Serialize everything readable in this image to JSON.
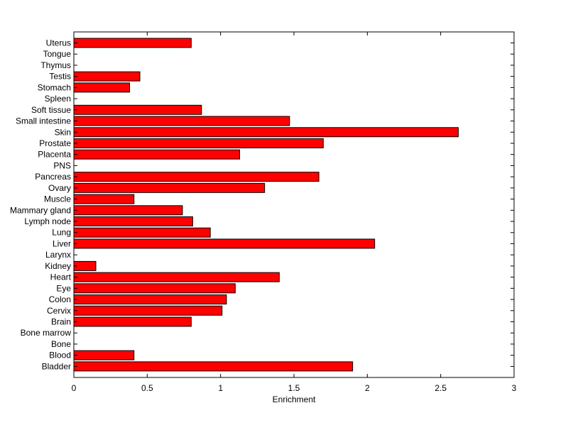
{
  "chart_data": {
    "type": "bar",
    "orientation": "horizontal",
    "xlabel": "Enrichment",
    "ylabel": "",
    "title": "",
    "xlim": [
      0,
      3
    ],
    "xticks": [
      "0",
      "0.5",
      "1",
      "1.5",
      "2",
      "2.5",
      "3"
    ],
    "bar_color": "#ff0000",
    "grid": false,
    "categories": [
      "Uterus",
      "Tongue",
      "Thymus",
      "Testis",
      "Stomach",
      "Spleen",
      "Soft tissue",
      "Small intestine",
      "Skin",
      "Prostate",
      "Placenta",
      "PNS",
      "Pancreas",
      "Ovary",
      "Muscle",
      "Mammary gland",
      "Lymph node",
      "Lung",
      "Liver",
      "Larynx",
      "Kidney",
      "Heart",
      "Eye",
      "Colon",
      "Cervix",
      "Brain",
      "Bone marrow",
      "Bone",
      "Blood",
      "Bladder"
    ],
    "values": [
      0.8,
      0,
      0,
      0.45,
      0.38,
      0,
      0.87,
      1.47,
      2.62,
      1.7,
      1.13,
      0,
      1.67,
      1.3,
      0.41,
      0.74,
      0.81,
      0.93,
      2.05,
      0,
      0.15,
      1.4,
      1.1,
      1.04,
      1.01,
      0.8,
      0,
      0,
      0.41,
      1.9
    ]
  }
}
